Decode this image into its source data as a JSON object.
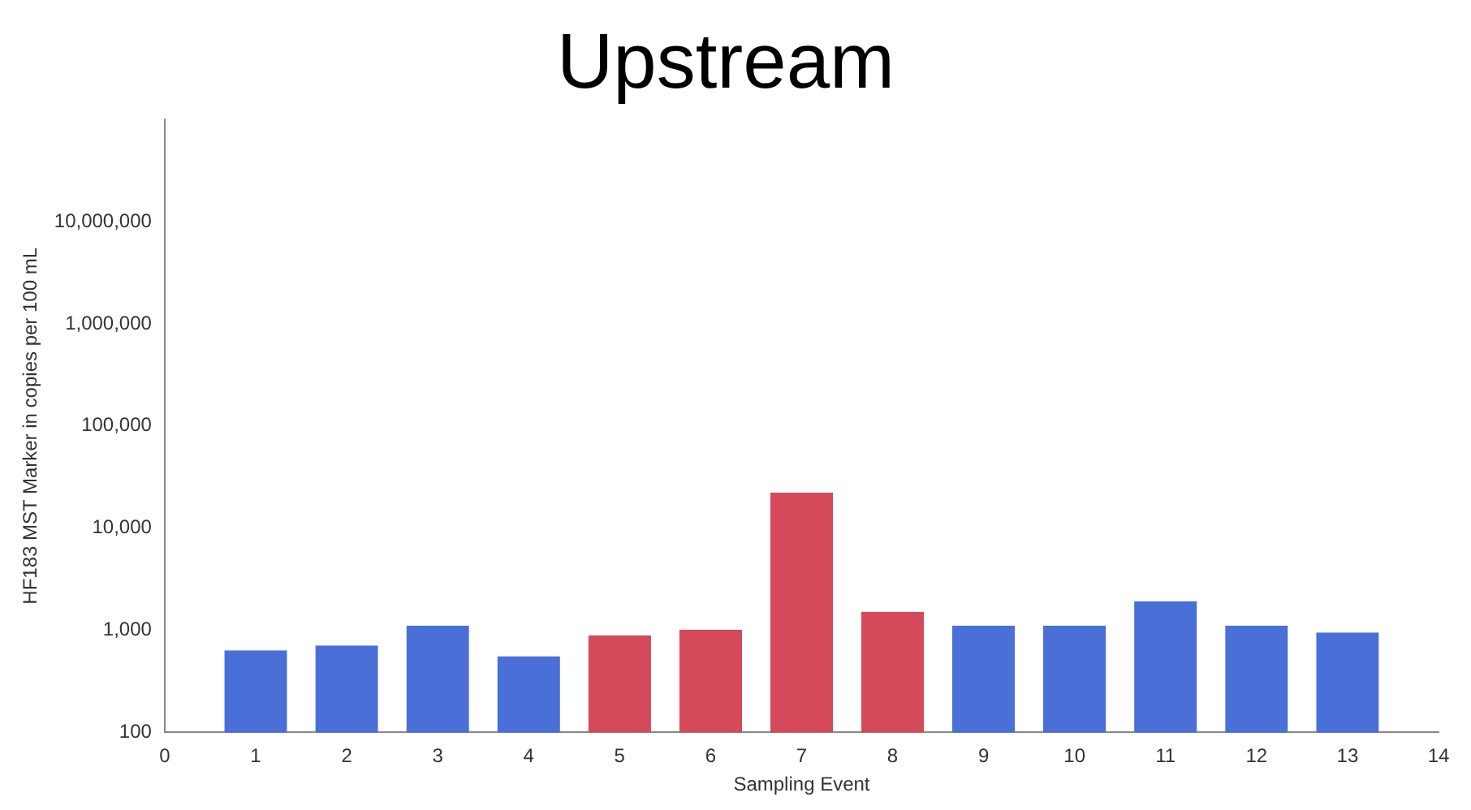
{
  "chart_data": {
    "type": "bar",
    "title": "Upstream",
    "xlabel": "Sampling Event",
    "ylabel": "HF183 MST Marker in copies per 100 mL",
    "x": [
      1,
      2,
      3,
      4,
      5,
      6,
      7,
      8,
      9,
      10,
      11,
      12,
      13
    ],
    "values": [
      630,
      700,
      1100,
      550,
      880,
      1000,
      22000,
      1500,
      1100,
      1100,
      1900,
      1100,
      940
    ],
    "colors": [
      "#4a6fd6",
      "#4a6fd6",
      "#4a6fd6",
      "#4a6fd6",
      "#d44a5a",
      "#d44a5a",
      "#d44a5a",
      "#d44a5a",
      "#4a6fd6",
      "#4a6fd6",
      "#4a6fd6",
      "#4a6fd6",
      "#4a6fd6"
    ],
    "xlim": [
      0,
      14
    ],
    "xticks": [
      0,
      1,
      2,
      3,
      4,
      5,
      6,
      7,
      8,
      9,
      10,
      11,
      12,
      13,
      14
    ],
    "ylim": [
      100,
      100000000
    ],
    "yticks": [
      {
        "value": 100,
        "label": "100"
      },
      {
        "value": 1000,
        "label": "1,000"
      },
      {
        "value": 10000,
        "label": "10,000"
      },
      {
        "value": 100000,
        "label": "100,000"
      },
      {
        "value": 1000000,
        "label": "1,000,000"
      },
      {
        "value": 10000000,
        "label": "10,000,000"
      }
    ],
    "log": "y",
    "grid": false,
    "legend": false
  }
}
